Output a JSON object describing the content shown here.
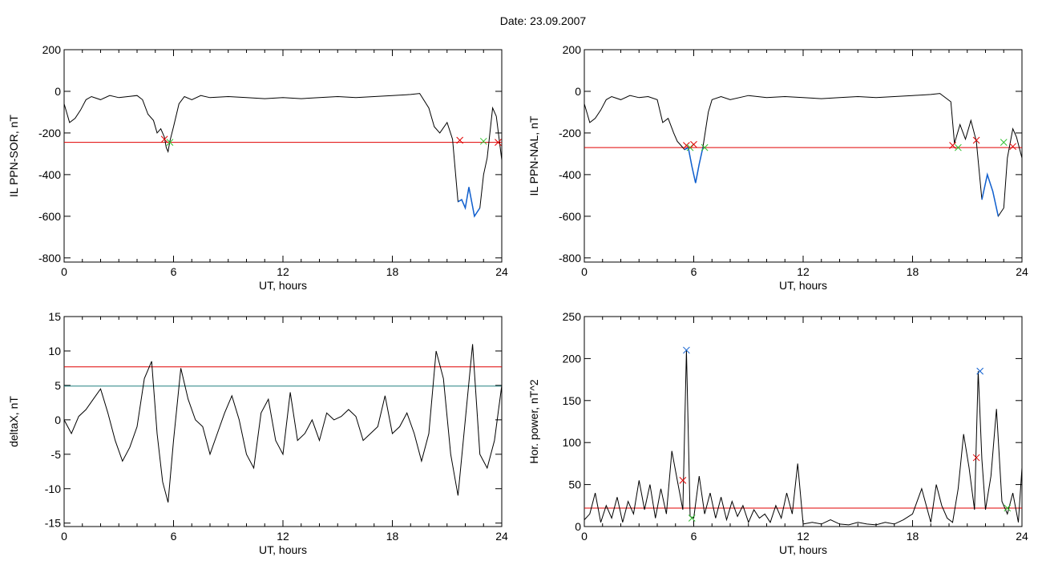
{
  "header": {
    "date_text": "Date:  23.09.2007"
  },
  "colors": {
    "trace": "#000000",
    "threshold": "#e00000",
    "highlight": "#1060d0",
    "upper_threshold": "#e00000",
    "lower_threshold": "#208080",
    "marker_red": "#e00000",
    "marker_green": "#30c030",
    "marker_blue": "#1060d0"
  },
  "chart_data": [
    {
      "id": "ppn-sor",
      "type": "line",
      "title": "",
      "xlabel": "UT, hours",
      "ylabel": "IL PPN-SOR, nT",
      "xlim": [
        0,
        24
      ],
      "ylim": [
        -820,
        200
      ],
      "xticks": [
        "0",
        "6",
        "12",
        "18",
        "24"
      ],
      "yticks": [
        "-800",
        "-600",
        "-400",
        "-200",
        "0",
        "200"
      ],
      "threshold": -245,
      "x": [
        0,
        0.3,
        0.6,
        0.9,
        1.2,
        1.5,
        2,
        2.5,
        3,
        3.5,
        4,
        4.3,
        4.6,
        4.9,
        5.1,
        5.3,
        5.5,
        5.6,
        5.7,
        5.8,
        6,
        6.3,
        6.6,
        7,
        7.5,
        8,
        9,
        10,
        11,
        12,
        13,
        14,
        15,
        16,
        17,
        18,
        19,
        19.5,
        20,
        20.3,
        20.6,
        21,
        21.3,
        21.6,
        21.8,
        22,
        22.2,
        22.5,
        22.8,
        23,
        23.2,
        23.5,
        23.7,
        24
      ],
      "y": [
        -60,
        -150,
        -130,
        -90,
        -40,
        -25,
        -40,
        -20,
        -30,
        -25,
        -20,
        -40,
        -110,
        -140,
        -200,
        -180,
        -220,
        -270,
        -290,
        -240,
        -170,
        -60,
        -25,
        -40,
        -20,
        -30,
        -25,
        -30,
        -35,
        -30,
        -35,
        -30,
        -25,
        -30,
        -25,
        -20,
        -15,
        -10,
        -80,
        -170,
        -200,
        -150,
        -230,
        -530,
        -520,
        -560,
        -460,
        -600,
        -560,
        -400,
        -320,
        -80,
        -120,
        -330
      ],
      "highlights": [
        [
          21.55,
          22.95
        ]
      ],
      "markers": [
        {
          "x": 5.5,
          "y": -230,
          "color": "red"
        },
        {
          "x": 5.8,
          "y": -245,
          "color": "green"
        },
        {
          "x": 21.7,
          "y": -235,
          "color": "red"
        },
        {
          "x": 23.0,
          "y": -240,
          "color": "green"
        },
        {
          "x": 23.8,
          "y": -245,
          "color": "red"
        }
      ]
    },
    {
      "id": "ppn-nal",
      "type": "line",
      "title": "",
      "xlabel": "UT, hours",
      "ylabel": "IL PPN-NAL, nT",
      "xlim": [
        0,
        24
      ],
      "ylim": [
        -820,
        200
      ],
      "xticks": [
        "0",
        "6",
        "12",
        "18",
        "24"
      ],
      "yticks": [
        "-800",
        "-600",
        "-400",
        "-200",
        "0",
        "200"
      ],
      "threshold": -270,
      "x": [
        0,
        0.3,
        0.6,
        0.9,
        1.2,
        1.5,
        2,
        2.5,
        3,
        3.5,
        4,
        4.3,
        4.6,
        4.9,
        5.1,
        5.3,
        5.5,
        5.7,
        5.9,
        6.1,
        6.3,
        6.5,
        6.8,
        7,
        7.5,
        8,
        9,
        10,
        11,
        12,
        13,
        14,
        15,
        16,
        17,
        18,
        19,
        19.5,
        20.1,
        20.3,
        20.6,
        20.9,
        21.2,
        21.5,
        21.8,
        22.1,
        22.4,
        22.7,
        23,
        23.2,
        23.5,
        23.7,
        24
      ],
      "y": [
        -60,
        -150,
        -130,
        -90,
        -40,
        -25,
        -40,
        -20,
        -30,
        -25,
        -40,
        -150,
        -130,
        -200,
        -240,
        -260,
        -280,
        -270,
        -360,
        -440,
        -350,
        -270,
        -100,
        -40,
        -25,
        -40,
        -20,
        -30,
        -25,
        -30,
        -35,
        -30,
        -25,
        -30,
        -25,
        -20,
        -15,
        -10,
        -50,
        -250,
        -160,
        -230,
        -140,
        -240,
        -520,
        -400,
        -480,
        -600,
        -560,
        -320,
        -180,
        -220,
        -320
      ],
      "highlights": [
        [
          5.5,
          6.6
        ],
        [
          21.7,
          22.95
        ]
      ],
      "markers": [
        {
          "x": 5.6,
          "y": -260,
          "color": "red"
        },
        {
          "x": 5.8,
          "y": -270,
          "color": "green"
        },
        {
          "x": 6.0,
          "y": -255,
          "color": "red"
        },
        {
          "x": 6.6,
          "y": -270,
          "color": "green"
        },
        {
          "x": 20.2,
          "y": -260,
          "color": "red"
        },
        {
          "x": 20.5,
          "y": -270,
          "color": "green"
        },
        {
          "x": 21.5,
          "y": -235,
          "color": "red"
        },
        {
          "x": 23.0,
          "y": -245,
          "color": "green"
        },
        {
          "x": 23.5,
          "y": -265,
          "color": "red"
        }
      ]
    },
    {
      "id": "deltax",
      "type": "line",
      "title": "",
      "xlabel": "UT, hours",
      "ylabel": "deltaX, nT",
      "xlim": [
        0,
        24
      ],
      "ylim": [
        -15.5,
        15
      ],
      "xticks": [
        "0",
        "6",
        "12",
        "18",
        "24"
      ],
      "yticks": [
        "-15",
        "-10",
        "-5",
        "0",
        "5",
        "10",
        "15"
      ],
      "upper_threshold": 7.7,
      "lower_threshold": 4.9,
      "x": [
        0,
        0.4,
        0.8,
        1.2,
        1.6,
        2,
        2.4,
        2.8,
        3.2,
        3.6,
        4,
        4.4,
        4.8,
        5.1,
        5.4,
        5.7,
        6,
        6.4,
        6.8,
        7.2,
        7.6,
        8,
        8.4,
        8.8,
        9.2,
        9.6,
        10,
        10.4,
        10.8,
        11.2,
        11.6,
        12,
        12.4,
        12.8,
        13.2,
        13.6,
        14,
        14.4,
        14.8,
        15.2,
        15.6,
        16,
        16.4,
        16.8,
        17.2,
        17.6,
        18,
        18.4,
        18.8,
        19.2,
        19.6,
        20,
        20.4,
        20.8,
        21.2,
        21.6,
        22,
        22.4,
        22.8,
        23.2,
        23.6,
        24
      ],
      "y": [
        0,
        -2,
        0.5,
        1.5,
        3,
        4.5,
        1,
        -3,
        -6,
        -4,
        -1,
        6,
        8.5,
        -2,
        -9,
        -12,
        -3,
        7.5,
        3,
        0,
        -1,
        -5,
        -2,
        1,
        3.5,
        0,
        -5,
        -7,
        1,
        3,
        -3,
        -5,
        4,
        -3,
        -2,
        0,
        -3,
        1,
        0,
        0.5,
        1.5,
        0.5,
        -3,
        -2,
        -1,
        3.5,
        -2,
        -1,
        1,
        -2,
        -6,
        -2,
        10,
        6,
        -5,
        -11,
        0,
        11,
        -5,
        -7,
        -3,
        5
      ]
    },
    {
      "id": "hor-power",
      "type": "line",
      "title": "",
      "xlabel": "UT, hours",
      "ylabel": "Hor. power, nT^2",
      "xlim": [
        0,
        24
      ],
      "ylim": [
        0,
        250
      ],
      "xticks": [
        "0",
        "6",
        "12",
        "18",
        "24"
      ],
      "yticks": [
        "0",
        "50",
        "100",
        "150",
        "200",
        "250"
      ],
      "threshold": 22,
      "x": [
        0,
        0.3,
        0.6,
        0.9,
        1.2,
        1.5,
        1.8,
        2.1,
        2.4,
        2.7,
        3,
        3.3,
        3.6,
        3.9,
        4.2,
        4.5,
        4.8,
        5.1,
        5.4,
        5.6,
        5.8,
        6,
        6.3,
        6.6,
        6.9,
        7.2,
        7.5,
        7.8,
        8.1,
        8.4,
        8.7,
        9,
        9.3,
        9.6,
        9.9,
        10.2,
        10.5,
        10.8,
        11.1,
        11.4,
        11.7,
        12,
        12.5,
        13,
        13.5,
        14,
        14.5,
        15,
        15.5,
        16,
        16.5,
        17,
        17.5,
        18,
        18.5,
        19,
        19.3,
        19.6,
        19.9,
        20.2,
        20.5,
        20.8,
        21.1,
        21.4,
        21.6,
        21.8,
        22,
        22.3,
        22.6,
        22.9,
        23.2,
        23.5,
        23.8,
        24
      ],
      "y": [
        8,
        15,
        40,
        5,
        25,
        10,
        35,
        5,
        30,
        15,
        55,
        20,
        50,
        10,
        45,
        15,
        90,
        55,
        20,
        210,
        12,
        10,
        60,
        15,
        40,
        10,
        35,
        8,
        30,
        12,
        25,
        5,
        20,
        10,
        15,
        5,
        25,
        10,
        40,
        15,
        75,
        3,
        5,
        3,
        8,
        3,
        2,
        5,
        3,
        2,
        5,
        3,
        8,
        15,
        45,
        5,
        50,
        25,
        10,
        5,
        45,
        110,
        70,
        20,
        185,
        80,
        20,
        60,
        140,
        30,
        15,
        40,
        5,
        70
      ],
      "markers": [
        {
          "x": 5.4,
          "y": 55,
          "color": "red"
        },
        {
          "x": 5.6,
          "y": 210,
          "color": "blue"
        },
        {
          "x": 5.9,
          "y": 10,
          "color": "green"
        },
        {
          "x": 21.5,
          "y": 82,
          "color": "red"
        },
        {
          "x": 21.7,
          "y": 185,
          "color": "blue"
        },
        {
          "x": 23.2,
          "y": 22,
          "color": "green"
        }
      ]
    }
  ]
}
